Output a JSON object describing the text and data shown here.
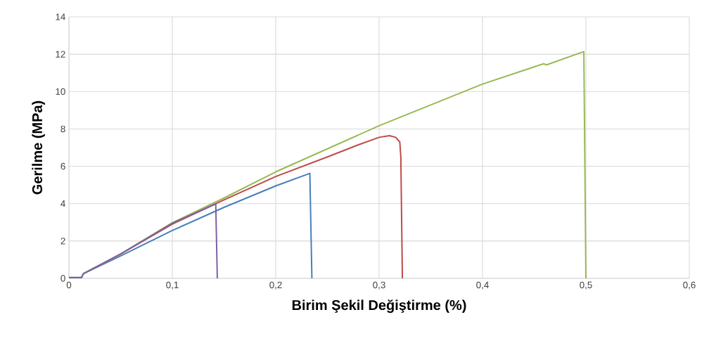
{
  "chart_data": {
    "type": "line",
    "xlabel": "Birim Şekil Değiştirme (%)",
    "ylabel": "Gerilme (MPa)",
    "xlim": [
      0,
      0.6
    ],
    "ylim": [
      0,
      14
    ],
    "xticks": [
      0,
      {
        "value": 0.1,
        "label": "0,1"
      },
      {
        "value": 0.2,
        "label": "0,2"
      },
      {
        "value": 0.3,
        "label": "0,3"
      },
      {
        "value": 0.4,
        "label": "0,4"
      },
      {
        "value": 0.5,
        "label": "0,5"
      },
      {
        "value": 0.6,
        "label": "0,6"
      }
    ],
    "yticks": [
      0,
      2,
      4,
      6,
      8,
      10,
      12,
      14
    ],
    "grid": true,
    "legend": false,
    "marker": "none",
    "line_style": "solid",
    "series": [
      {
        "color": "#4a7ebb",
        "x": [
          0,
          0.012,
          0.014,
          0.05,
          0.1,
          0.15,
          0.2,
          0.233,
          0.235
        ],
        "values": [
          0,
          0,
          0.25,
          1.2,
          2.56,
          3.8,
          4.95,
          5.62,
          0
        ]
      },
      {
        "color": "#be4b48",
        "x": [
          0.014,
          0.05,
          0.1,
          0.15,
          0.2,
          0.25,
          0.28,
          0.3,
          0.31,
          0.316,
          0.32,
          0.321,
          0.3225
        ],
        "values": [
          0.25,
          1.3,
          2.9,
          4.2,
          5.45,
          6.5,
          7.15,
          7.55,
          7.64,
          7.55,
          7.3,
          6.5,
          0
        ]
      },
      {
        "color": "#98b954",
        "x": [
          0.014,
          0.05,
          0.1,
          0.15,
          0.2,
          0.3,
          0.4,
          0.459,
          0.462,
          0.498,
          0.5
        ],
        "values": [
          0.25,
          1.3,
          2.98,
          4.3,
          5.7,
          8.17,
          10.4,
          11.49,
          11.43,
          12.14,
          0
        ]
      },
      {
        "color": "#7d60a0",
        "x": [
          0,
          0.012,
          0.014,
          0.05,
          0.1,
          0.142,
          0.1435
        ],
        "values": [
          0.05,
          0.05,
          0.25,
          1.3,
          2.95,
          3.99,
          0
        ]
      }
    ]
  }
}
